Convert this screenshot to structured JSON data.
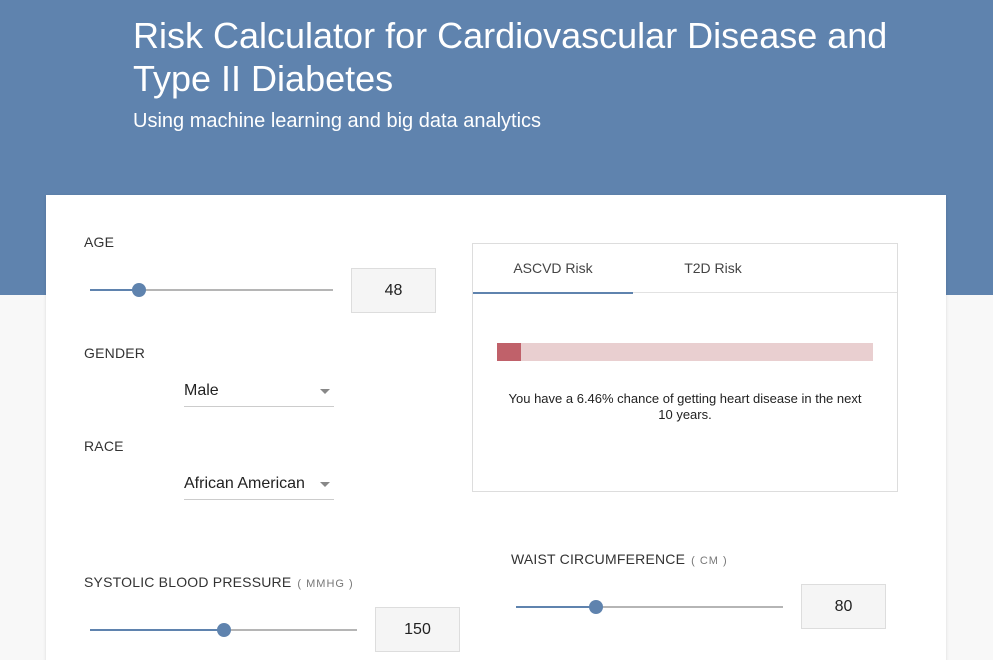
{
  "header": {
    "title": "Risk Calculator for Cardiovascular Disease and Type II Diabetes",
    "subtitle": "Using machine learning and big data analytics"
  },
  "form": {
    "age": {
      "label": "AGE",
      "value": "48",
      "slider_fraction": 0.2
    },
    "gender": {
      "label": "GENDER",
      "selected": "Male"
    },
    "race": {
      "label": "RACE",
      "selected": "African American"
    },
    "systolic": {
      "label": "SYSTOLIC BLOOD PRESSURE",
      "unit": "( MMHG )",
      "value": "150",
      "slider_fraction": 0.5
    },
    "waist": {
      "label": "WAIST CIRCUMFERENCE",
      "unit": "( CM )",
      "value": "80",
      "slider_fraction": 0.3
    }
  },
  "results": {
    "tabs": [
      {
        "label": "ASCVD Risk",
        "active": true
      },
      {
        "label": "T2D Risk",
        "active": false
      }
    ],
    "risk_fraction": 0.0646,
    "message": "You have a 6.46% chance of getting heart disease in the next 10 years."
  },
  "colors": {
    "brand": "#5f83ae",
    "risk_fill": "#c0616a",
    "risk_track": "#e9cfd0"
  }
}
